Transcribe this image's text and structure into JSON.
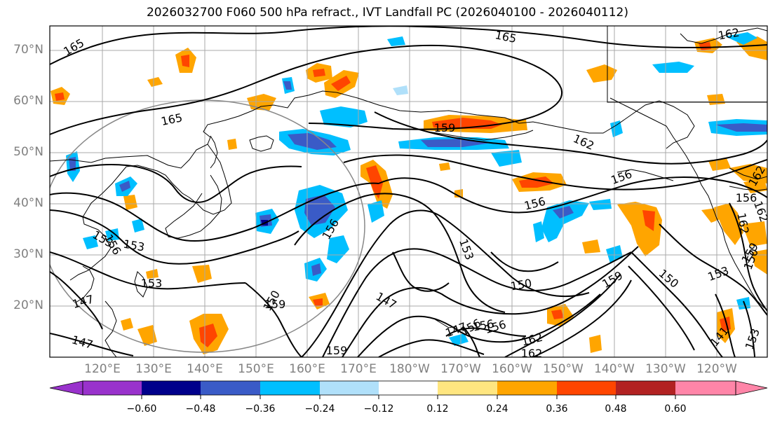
{
  "title": "2026032700 F060 500 hPa refract., IVT Landfall PC (2026040100 - 2026040112)",
  "lat_labels": [
    "70°N",
    "60°N",
    "50°N",
    "40°N",
    "30°N",
    "20°N"
  ],
  "lon_labels": [
    "120°E",
    "130°E",
    "140°E",
    "150°E",
    "160°E",
    "170°E",
    "180°W",
    "170°W",
    "160°W",
    "150°W",
    "140°W",
    "130°W",
    "120°W"
  ],
  "colorbar": {
    "ticks": [
      "−0.60",
      "−0.48",
      "−0.36",
      "−0.24",
      "−0.12",
      "0.12",
      "0.24",
      "0.36",
      "0.48",
      "0.60"
    ],
    "colors": [
      "#9932cc",
      "#00008b",
      "#3a5bc7",
      "#00bfff",
      "#b0e0fa",
      "#ffffff",
      "#ffe680",
      "#ffa500",
      "#ff4500",
      "#b22222",
      "#ff85a8"
    ]
  },
  "contour_labels": [
    "165",
    "165",
    "165",
    "162",
    "159",
    "162",
    "162",
    "156",
    "156",
    "156",
    "156",
    "156",
    "153",
    "153",
    "153",
    "153",
    "150",
    "150",
    "150",
    "150",
    "147",
    "147",
    "147",
    "147",
    "159",
    "159",
    "156",
    "156",
    "162",
    "162",
    "162",
    "159",
    "153",
    "156",
    "141",
    "153",
    "162",
    "159"
  ]
}
